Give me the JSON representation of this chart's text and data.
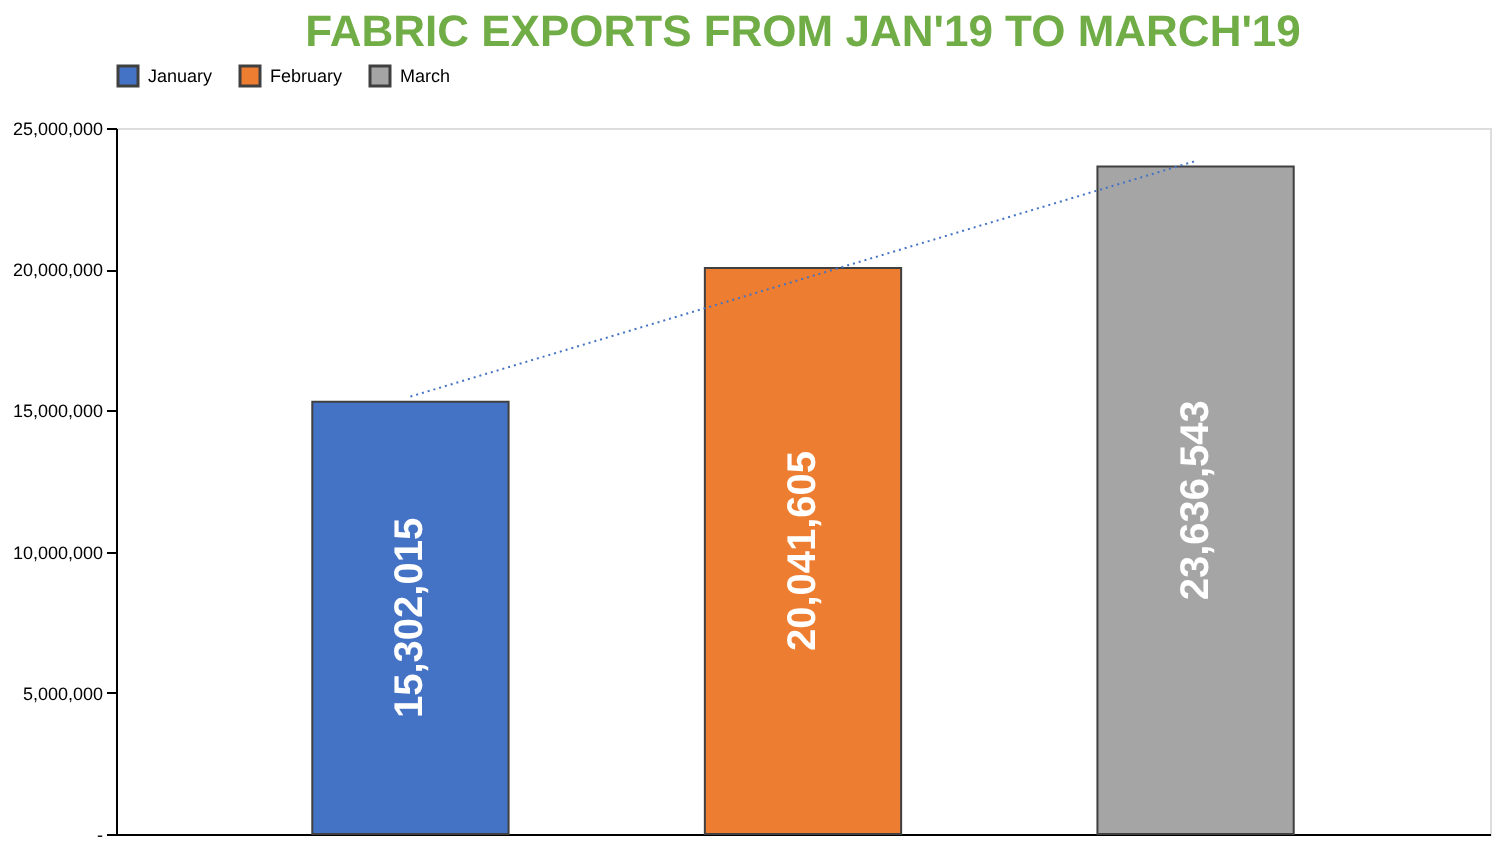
{
  "chart_data": {
    "type": "bar",
    "title": "FABRIC EXPORTS FROM JAN'19 TO MARCH'19",
    "categories": [
      null,
      null,
      null
    ],
    "series": [
      {
        "name": "January",
        "color": "#4472c4",
        "values": [
          15302015,
          null,
          null
        ],
        "value_labels": [
          "15,302,015",
          null,
          null
        ]
      },
      {
        "name": "February",
        "color": "#ed7d31",
        "values": [
          null,
          20041605,
          null
        ],
        "value_labels": [
          null,
          "20,041,605",
          null
        ]
      },
      {
        "name": "March",
        "color": "#a5a5a5",
        "values": [
          null,
          null,
          23636543
        ],
        "value_labels": [
          null,
          null,
          "23,636,543"
        ]
      },
      {
        "type": "line",
        "color": "#4472c4",
        "line_style": "dotted",
        "values": [
          15490000,
          19660000,
          23830000
        ]
      }
    ],
    "ylim": [
      0,
      25000000
    ],
    "yticks": [
      {
        "value": 0,
        "label": "-"
      },
      {
        "value": 5000000,
        "label": "5,000,000"
      },
      {
        "value": 10000000,
        "label": "10,000,000"
      },
      {
        "value": 15000000,
        "label": "15,000,000"
      },
      {
        "value": 20000000,
        "label": "20,000,000"
      },
      {
        "value": 25000000,
        "label": "25,000,000"
      }
    ],
    "legend": "top",
    "grid": false
  }
}
